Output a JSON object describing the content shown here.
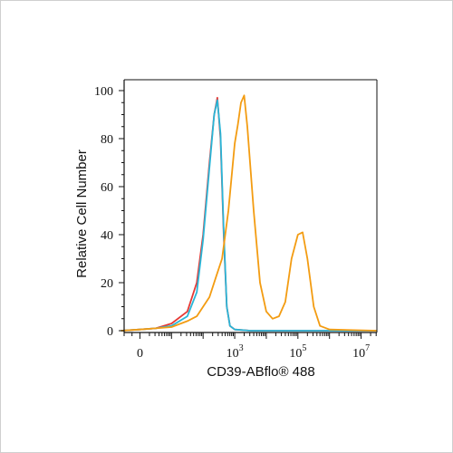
{
  "chart_data": {
    "type": "line",
    "title": "",
    "xlabel": "CD39-ABflo® 488",
    "ylabel": "Relative Cell Number",
    "x_scale": "biexponential (log-like)",
    "xlim_decades": [
      -0.5,
      7.5
    ],
    "ylim": [
      0,
      100
    ],
    "y_ticks": [
      0,
      20,
      40,
      60,
      80,
      100
    ],
    "x_ticks": [
      {
        "label": "0",
        "base": "0",
        "exp": "",
        "decade": 0
      },
      {
        "label": "10^3",
        "base": "10",
        "exp": "3",
        "decade": 3
      },
      {
        "label": "10^5",
        "base": "10",
        "exp": "5",
        "decade": 5
      },
      {
        "label": "10^7",
        "base": "10",
        "exp": "7",
        "decade": 7
      }
    ],
    "grid": false,
    "legend": "none",
    "series": [
      {
        "color": "#e53935",
        "points": [
          [
            -0.6,
            0
          ],
          [
            0,
            0.5
          ],
          [
            0.5,
            1
          ],
          [
            1,
            3
          ],
          [
            1.5,
            8
          ],
          [
            1.8,
            20
          ],
          [
            2,
            40
          ],
          [
            2.2,
            70
          ],
          [
            2.35,
            90
          ],
          [
            2.45,
            97
          ],
          [
            2.55,
            80
          ],
          [
            2.65,
            40
          ],
          [
            2.75,
            10
          ],
          [
            2.85,
            2
          ],
          [
            3,
            0.5
          ],
          [
            3.5,
            0
          ],
          [
            7.5,
            0
          ]
        ]
      },
      {
        "color": "#29b6d8",
        "points": [
          [
            -0.6,
            0
          ],
          [
            0,
            0.5
          ],
          [
            0.5,
            1
          ],
          [
            1,
            2
          ],
          [
            1.5,
            6
          ],
          [
            1.8,
            16
          ],
          [
            2,
            38
          ],
          [
            2.2,
            68
          ],
          [
            2.35,
            90
          ],
          [
            2.45,
            96
          ],
          [
            2.55,
            82
          ],
          [
            2.65,
            42
          ],
          [
            2.75,
            10
          ],
          [
            2.85,
            2
          ],
          [
            3,
            0.5
          ],
          [
            3.5,
            0
          ],
          [
            7.5,
            0
          ]
        ]
      },
      {
        "color": "#f39c12",
        "points": [
          [
            -0.6,
            0
          ],
          [
            0,
            0.5
          ],
          [
            0.5,
            1
          ],
          [
            1,
            1.5
          ],
          [
            1.5,
            4
          ],
          [
            1.8,
            6
          ],
          [
            2,
            10
          ],
          [
            2.2,
            14
          ],
          [
            2.4,
            22
          ],
          [
            2.6,
            30
          ],
          [
            2.8,
            50
          ],
          [
            3,
            78
          ],
          [
            3.1,
            86
          ],
          [
            3.2,
            95
          ],
          [
            3.3,
            98
          ],
          [
            3.4,
            85
          ],
          [
            3.6,
            50
          ],
          [
            3.8,
            20
          ],
          [
            4,
            8
          ],
          [
            4.2,
            5
          ],
          [
            4.4,
            6
          ],
          [
            4.6,
            12
          ],
          [
            4.8,
            30
          ],
          [
            5,
            40
          ],
          [
            5.15,
            41
          ],
          [
            5.3,
            30
          ],
          [
            5.5,
            10
          ],
          [
            5.7,
            2
          ],
          [
            6,
            0.5
          ],
          [
            7.5,
            0
          ]
        ]
      }
    ]
  }
}
